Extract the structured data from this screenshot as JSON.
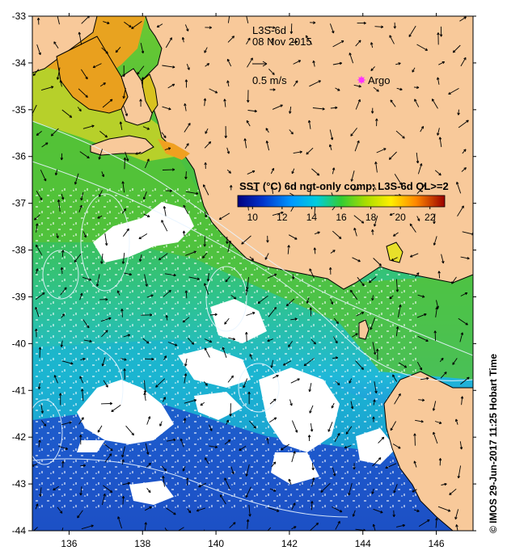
{
  "product": "L3S-6d",
  "date": "08 Nov 2015",
  "vector_scale_label": "0.5 m/s",
  "argo_label": "Argo",
  "colorbar": {
    "title": "SST (°C) 6d ngt-only comp, L3S-6d QL>=2",
    "ticks": [
      "10",
      "12",
      "14",
      "16",
      "18",
      "20",
      "22"
    ],
    "min": 9,
    "max": 23
  },
  "axes": {
    "lon_ticks": [
      "136",
      "138",
      "140",
      "142",
      "144",
      "146"
    ],
    "lat_ticks": [
      "-33",
      "-34",
      "-35",
      "-36",
      "-37",
      "-38",
      "-39",
      "-40",
      "-41",
      "-42",
      "-43",
      "-44"
    ]
  },
  "credit": "© IMOS 29-Jun-2017 11:25 Hobart Time",
  "colors": {
    "land": "#f8c99a",
    "coast": "#000000",
    "cloud": "#ffffff",
    "contour": "#e8f4ff",
    "argo": "#ff33ff"
  }
}
